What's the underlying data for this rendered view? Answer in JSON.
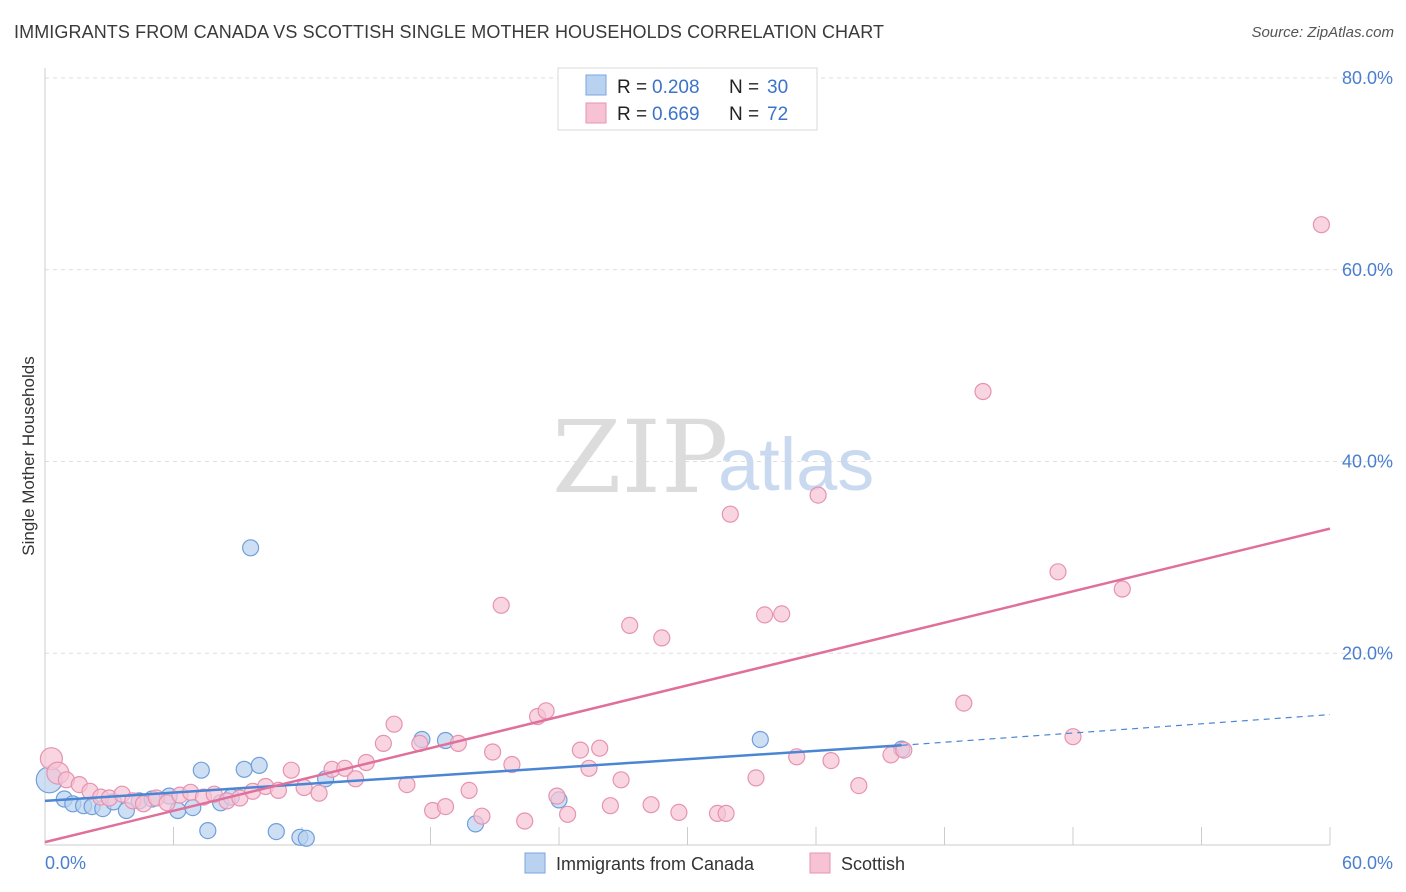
{
  "title": "IMMIGRANTS FROM CANADA VS SCOTTISH SINGLE MOTHER HOUSEHOLDS CORRELATION CHART",
  "source": "Source: ZipAtlas.com",
  "watermark": {
    "zip": "ZIP",
    "atlas": "atlas"
  },
  "colors": {
    "blue": "#4a86d4",
    "blue_fill": "#b9d2f0",
    "pink": "#e0709a",
    "pink_fill": "#f7c3d4",
    "grid": "#dddddd",
    "tick_text": "#4a7fcf"
  },
  "legend": {
    "r_label": "R =",
    "n_label": "N =",
    "entries": [
      {
        "r": "0.208",
        "n": "30"
      },
      {
        "r": "0.669",
        "n": "72"
      }
    ]
  },
  "chart_data": {
    "type": "scatter",
    "xlabel": "",
    "ylabel": "Single Mother Households",
    "xlim": [
      0,
      60
    ],
    "ylim": [
      0,
      80
    ],
    "x_tick_labels": [
      "0.0%",
      "60.0%"
    ],
    "y_tick_labels": [
      "20.0%",
      "40.0%",
      "60.0%",
      "80.0%"
    ],
    "y_ticks": [
      20,
      40,
      60,
      80
    ],
    "grid": true,
    "legend_position": "bottom",
    "series": [
      {
        "name": "Immigrants from Canada",
        "points": [
          [
            0.2,
            6.8
          ],
          [
            0.9,
            4.8
          ],
          [
            1.3,
            4.3
          ],
          [
            1.8,
            4.1
          ],
          [
            2.2,
            4.0
          ],
          [
            2.7,
            3.8
          ],
          [
            3.2,
            4.5
          ],
          [
            3.8,
            3.6
          ],
          [
            4.4,
            4.6
          ],
          [
            5.0,
            4.8
          ],
          [
            5.8,
            5.1
          ],
          [
            6.2,
            3.6
          ],
          [
            6.9,
            3.9
          ],
          [
            7.3,
            7.8
          ],
          [
            7.6,
            1.5
          ],
          [
            8.2,
            4.4
          ],
          [
            8.7,
            5.0
          ],
          [
            9.3,
            7.9
          ],
          [
            9.6,
            31.0
          ],
          [
            10.0,
            8.3
          ],
          [
            10.8,
            1.4
          ],
          [
            11.9,
            0.8
          ],
          [
            12.2,
            0.7
          ],
          [
            13.1,
            6.9
          ],
          [
            17.6,
            11.0
          ],
          [
            18.7,
            10.9
          ],
          [
            20.1,
            2.2
          ],
          [
            24.0,
            4.7
          ],
          [
            33.4,
            11.0
          ],
          [
            40.0,
            10.0
          ]
        ],
        "trend": {
          "x": [
            0,
            40
          ],
          "y": [
            4.6,
            10.4
          ]
        },
        "trend_dashed": {
          "x": [
            40,
            60
          ],
          "y": [
            10.4,
            13.6
          ]
        }
      },
      {
        "name": "Scottish",
        "points": [
          [
            0.3,
            9.0
          ],
          [
            0.6,
            7.5
          ],
          [
            1.0,
            6.8
          ],
          [
            1.6,
            6.3
          ],
          [
            2.1,
            5.6
          ],
          [
            2.6,
            5.0
          ],
          [
            3.0,
            4.9
          ],
          [
            3.6,
            5.3
          ],
          [
            4.1,
            4.6
          ],
          [
            4.6,
            4.3
          ],
          [
            5.2,
            4.9
          ],
          [
            5.7,
            4.4
          ],
          [
            6.3,
            5.2
          ],
          [
            6.8,
            5.5
          ],
          [
            7.4,
            5.0
          ],
          [
            7.9,
            5.3
          ],
          [
            8.5,
            4.6
          ],
          [
            9.1,
            4.9
          ],
          [
            9.7,
            5.6
          ],
          [
            10.3,
            6.1
          ],
          [
            10.9,
            5.7
          ],
          [
            11.5,
            7.8
          ],
          [
            12.1,
            6.0
          ],
          [
            12.8,
            5.4
          ],
          [
            13.4,
            7.9
          ],
          [
            14.0,
            8.0
          ],
          [
            14.5,
            6.9
          ],
          [
            15.0,
            8.6
          ],
          [
            15.8,
            10.6
          ],
          [
            16.3,
            12.6
          ],
          [
            16.9,
            6.3
          ],
          [
            17.5,
            10.6
          ],
          [
            18.1,
            3.6
          ],
          [
            18.7,
            4.0
          ],
          [
            19.3,
            10.6
          ],
          [
            19.8,
            5.7
          ],
          [
            20.4,
            3.0
          ],
          [
            20.9,
            9.7
          ],
          [
            21.3,
            25.0
          ],
          [
            21.8,
            8.4
          ],
          [
            22.4,
            2.5
          ],
          [
            23.0,
            13.4
          ],
          [
            23.4,
            14.0
          ],
          [
            23.9,
            5.1
          ],
          [
            24.4,
            3.2
          ],
          [
            25.0,
            9.9
          ],
          [
            25.4,
            8.0
          ],
          [
            25.9,
            10.1
          ],
          [
            26.4,
            4.1
          ],
          [
            26.9,
            6.8
          ],
          [
            27.3,
            22.9
          ],
          [
            28.3,
            4.2
          ],
          [
            28.8,
            21.6
          ],
          [
            29.6,
            3.4
          ],
          [
            31.4,
            3.3
          ],
          [
            31.8,
            3.3
          ],
          [
            32.0,
            34.5
          ],
          [
            33.2,
            7.0
          ],
          [
            33.6,
            24.0
          ],
          [
            34.4,
            24.1
          ],
          [
            35.1,
            9.2
          ],
          [
            36.1,
            36.5
          ],
          [
            36.7,
            8.8
          ],
          [
            38.0,
            6.2
          ],
          [
            39.5,
            9.4
          ],
          [
            40.1,
            9.9
          ],
          [
            42.9,
            14.8
          ],
          [
            43.8,
            47.3
          ],
          [
            47.3,
            28.5
          ],
          [
            48.0,
            11.3
          ],
          [
            50.3,
            26.7
          ],
          [
            59.6,
            64.7
          ]
        ],
        "trend": {
          "x": [
            0,
            60
          ],
          "y": [
            0.3,
            33.0
          ]
        }
      }
    ]
  }
}
